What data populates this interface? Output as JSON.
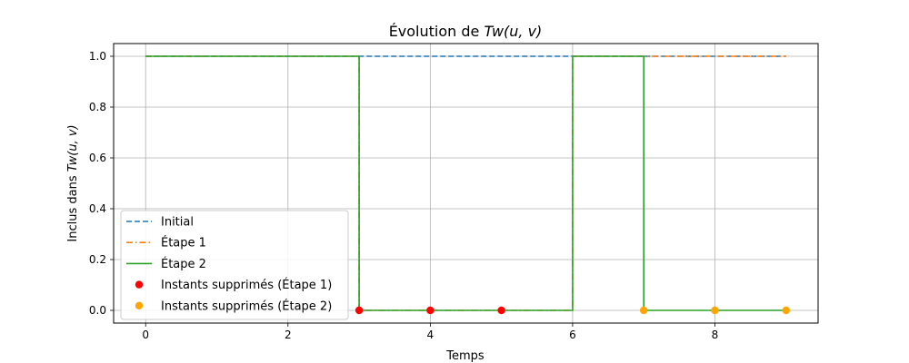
{
  "chart_data": {
    "type": "line",
    "title": "Évolution de Tw(u, v)",
    "title_parts": {
      "prefix": "Évolution de ",
      "math": "Tw(u, v)"
    },
    "xlabel": "Temps",
    "ylabel": "Inclus dans Tw(u, v)",
    "ylabel_parts": {
      "prefix": "Inclus dans ",
      "math": "Tw(u, v)"
    },
    "xlim": [
      -0.45,
      9.45
    ],
    "ylim": [
      -0.05,
      1.05
    ],
    "x_ticks": [
      0,
      2,
      4,
      6,
      8
    ],
    "y_ticks": [
      0.0,
      0.2,
      0.4,
      0.6,
      0.8,
      1.0
    ],
    "x_tick_labels": [
      "0",
      "2",
      "4",
      "6",
      "8"
    ],
    "y_tick_labels": [
      "0.0",
      "0.2",
      "0.4",
      "0.6",
      "0.8",
      "1.0"
    ],
    "grid": true,
    "legend_position": "lower-left",
    "series": [
      {
        "name": "Initial",
        "kind": "step",
        "style": "dashed",
        "color": "#1f77b4",
        "x": [
          0,
          1,
          2,
          3,
          4,
          5,
          6,
          7,
          8,
          9
        ],
        "y": [
          1,
          1,
          1,
          1,
          1,
          1,
          1,
          1,
          1,
          1
        ]
      },
      {
        "name": "Étape 1",
        "kind": "step",
        "style": "dashdot",
        "color": "#ff7f0e",
        "x": [
          0,
          1,
          2,
          3,
          4,
          5,
          6,
          7,
          8,
          9
        ],
        "y": [
          1,
          1,
          1,
          0,
          0,
          0,
          1,
          1,
          1,
          1
        ]
      },
      {
        "name": "Étape 2",
        "kind": "step",
        "style": "solid",
        "color": "#2ca02c",
        "x": [
          0,
          1,
          2,
          3,
          4,
          5,
          6,
          7,
          8,
          9
        ],
        "y": [
          1,
          1,
          1,
          0,
          0,
          0,
          1,
          0,
          0,
          0
        ]
      },
      {
        "name": "Instants supprimés (Étape 1)",
        "kind": "scatter",
        "color": "#ff0000",
        "x": [
          3,
          4,
          5
        ],
        "y": [
          0,
          0,
          0
        ]
      },
      {
        "name": "Instants supprimés (Étape 2)",
        "kind": "scatter",
        "color": "#ffa500",
        "x": [
          7,
          8,
          9
        ],
        "y": [
          0,
          0,
          0
        ]
      }
    ]
  }
}
